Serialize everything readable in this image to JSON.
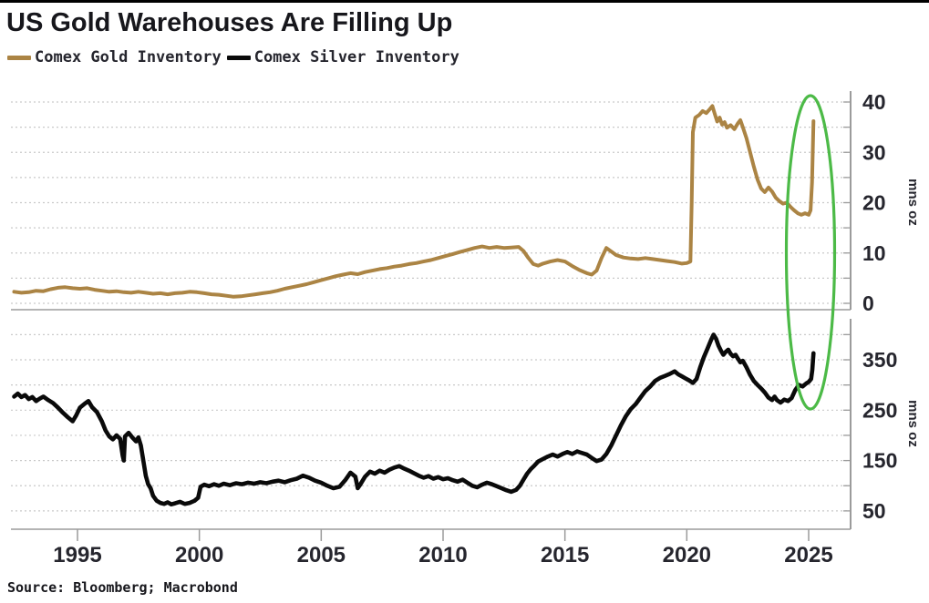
{
  "title": "US Gold Warehouses Are Filling Up",
  "source": "Source: Bloomberg; Macrobond",
  "legend": [
    {
      "label": "Comex Gold Inventory",
      "color": "#ab8444"
    },
    {
      "label": "Comex Silver Inventory",
      "color": "#0a0a0a"
    }
  ],
  "colors": {
    "gold_line": "#ab8444",
    "silver_line": "#0a0a0a",
    "highlight_green": "#4cba47",
    "gridline": "#c9c9c9",
    "axis": "#9b9b9b",
    "tick_label": "#26262e"
  },
  "x_axis": {
    "ticks": [
      1995,
      2000,
      2005,
      2010,
      2015,
      2020,
      2025
    ],
    "range": [
      1992.3,
      2026.7
    ]
  },
  "annotation": {
    "type": "ellipse",
    "color": "#4cba47"
  },
  "chart_data": [
    {
      "type": "line",
      "panel": "top",
      "name": "Comex Gold Inventory",
      "color": "#ab8444",
      "ylabel": "mns oz",
      "yticks_labeled": [
        0,
        10,
        20,
        30,
        40
      ],
      "gridlines": [
        0,
        5,
        10,
        15,
        20,
        25,
        30,
        35,
        40
      ],
      "ylim": [
        0,
        42
      ],
      "grid_on": true,
      "legend_position": "top-left",
      "points": [
        [
          1992.4,
          2.3
        ],
        [
          1992.7,
          2.1
        ],
        [
          1993.0,
          2.2
        ],
        [
          1993.3,
          2.5
        ],
        [
          1993.6,
          2.4
        ],
        [
          1993.9,
          2.8
        ],
        [
          1994.2,
          3.1
        ],
        [
          1994.5,
          3.2
        ],
        [
          1994.8,
          3.0
        ],
        [
          1995.1,
          2.9
        ],
        [
          1995.4,
          3.0
        ],
        [
          1995.7,
          2.7
        ],
        [
          1996.0,
          2.5
        ],
        [
          1996.3,
          2.3
        ],
        [
          1996.6,
          2.4
        ],
        [
          1996.9,
          2.2
        ],
        [
          1997.2,
          2.1
        ],
        [
          1997.5,
          2.3
        ],
        [
          1997.8,
          2.1
        ],
        [
          1998.1,
          1.9
        ],
        [
          1998.4,
          2.0
        ],
        [
          1998.7,
          1.8
        ],
        [
          1999.0,
          2.0
        ],
        [
          1999.3,
          2.1
        ],
        [
          1999.6,
          2.3
        ],
        [
          1999.9,
          2.2
        ],
        [
          2000.2,
          2.0
        ],
        [
          2000.5,
          1.8
        ],
        [
          2000.8,
          1.7
        ],
        [
          2001.1,
          1.5
        ],
        [
          2001.4,
          1.3
        ],
        [
          2001.7,
          1.4
        ],
        [
          2002.0,
          1.6
        ],
        [
          2002.3,
          1.8
        ],
        [
          2002.6,
          2.0
        ],
        [
          2002.9,
          2.2
        ],
        [
          2003.2,
          2.5
        ],
        [
          2003.5,
          2.9
        ],
        [
          2003.8,
          3.2
        ],
        [
          2004.1,
          3.5
        ],
        [
          2004.4,
          3.8
        ],
        [
          2004.7,
          4.2
        ],
        [
          2005.0,
          4.6
        ],
        [
          2005.3,
          5.0
        ],
        [
          2005.6,
          5.4
        ],
        [
          2005.9,
          5.7
        ],
        [
          2006.2,
          6.0
        ],
        [
          2006.5,
          5.8
        ],
        [
          2006.8,
          6.2
        ],
        [
          2007.1,
          6.5
        ],
        [
          2007.4,
          6.8
        ],
        [
          2007.7,
          7.0
        ],
        [
          2008.0,
          7.3
        ],
        [
          2008.3,
          7.5
        ],
        [
          2008.6,
          7.8
        ],
        [
          2008.9,
          8.0
        ],
        [
          2009.2,
          8.3
        ],
        [
          2009.5,
          8.6
        ],
        [
          2009.8,
          9.0
        ],
        [
          2010.1,
          9.4
        ],
        [
          2010.4,
          9.8
        ],
        [
          2010.7,
          10.2
        ],
        [
          2011.0,
          10.6
        ],
        [
          2011.3,
          11.0
        ],
        [
          2011.6,
          11.3
        ],
        [
          2011.9,
          11.0
        ],
        [
          2012.2,
          11.2
        ],
        [
          2012.5,
          11.0
        ],
        [
          2012.8,
          11.1
        ],
        [
          2013.1,
          11.2
        ],
        [
          2013.3,
          10.4
        ],
        [
          2013.5,
          9.0
        ],
        [
          2013.7,
          7.8
        ],
        [
          2013.9,
          7.5
        ],
        [
          2014.1,
          7.9
        ],
        [
          2014.4,
          8.3
        ],
        [
          2014.7,
          8.6
        ],
        [
          2015.0,
          8.3
        ],
        [
          2015.3,
          7.4
        ],
        [
          2015.6,
          6.6
        ],
        [
          2015.9,
          6.0
        ],
        [
          2016.1,
          5.7
        ],
        [
          2016.3,
          6.5
        ],
        [
          2016.5,
          9.0
        ],
        [
          2016.7,
          11.0
        ],
        [
          2016.9,
          10.3
        ],
        [
          2017.1,
          9.6
        ],
        [
          2017.4,
          9.1
        ],
        [
          2017.7,
          8.9
        ],
        [
          2018.0,
          8.8
        ],
        [
          2018.3,
          9.0
        ],
        [
          2018.6,
          8.8
        ],
        [
          2018.9,
          8.6
        ],
        [
          2019.2,
          8.4
        ],
        [
          2019.5,
          8.2
        ],
        [
          2019.8,
          7.9
        ],
        [
          2020.0,
          8.0
        ],
        [
          2020.15,
          8.3
        ],
        [
          2020.2,
          20.0
        ],
        [
          2020.25,
          34.0
        ],
        [
          2020.35,
          36.9
        ],
        [
          2020.5,
          37.4
        ],
        [
          2020.65,
          38.2
        ],
        [
          2020.8,
          37.8
        ],
        [
          2020.95,
          38.6
        ],
        [
          2021.05,
          39.2
        ],
        [
          2021.15,
          37.6
        ],
        [
          2021.25,
          36.1
        ],
        [
          2021.35,
          36.9
        ],
        [
          2021.45,
          35.5
        ],
        [
          2021.55,
          36.0
        ],
        [
          2021.65,
          34.9
        ],
        [
          2021.8,
          35.4
        ],
        [
          2021.95,
          34.6
        ],
        [
          2022.1,
          35.8
        ],
        [
          2022.2,
          36.4
        ],
        [
          2022.3,
          35.0
        ],
        [
          2022.45,
          32.8
        ],
        [
          2022.6,
          30.0
        ],
        [
          2022.75,
          27.2
        ],
        [
          2022.9,
          24.6
        ],
        [
          2023.05,
          22.8
        ],
        [
          2023.2,
          22.1
        ],
        [
          2023.35,
          23.0
        ],
        [
          2023.5,
          22.2
        ],
        [
          2023.65,
          21.0
        ],
        [
          2023.8,
          20.3
        ],
        [
          2023.95,
          19.8
        ],
        [
          2024.1,
          20.0
        ],
        [
          2024.25,
          19.2
        ],
        [
          2024.4,
          18.5
        ],
        [
          2024.55,
          17.9
        ],
        [
          2024.7,
          17.6
        ],
        [
          2024.85,
          17.9
        ],
        [
          2025.0,
          17.6
        ],
        [
          2025.08,
          18.5
        ],
        [
          2025.14,
          24.0
        ],
        [
          2025.2,
          36.2
        ]
      ]
    },
    {
      "type": "line",
      "panel": "bottom",
      "name": "Comex Silver Inventory",
      "color": "#0a0a0a",
      "ylabel": "mns oz",
      "yticks_labeled": [
        50,
        150,
        250,
        350
      ],
      "gridlines": [
        50,
        100,
        150,
        200,
        250,
        300,
        350,
        400
      ],
      "ylim": [
        15,
        430
      ],
      "grid_on": true,
      "points": [
        [
          1992.4,
          277
        ],
        [
          1992.55,
          283
        ],
        [
          1992.7,
          276
        ],
        [
          1992.85,
          280
        ],
        [
          1993.0,
          272
        ],
        [
          1993.15,
          276
        ],
        [
          1993.3,
          268
        ],
        [
          1993.45,
          273
        ],
        [
          1993.6,
          277
        ],
        [
          1993.8,
          270
        ],
        [
          1994.0,
          264
        ],
        [
          1994.2,
          255
        ],
        [
          1994.4,
          245
        ],
        [
          1994.6,
          236
        ],
        [
          1994.8,
          228
        ],
        [
          1994.95,
          240
        ],
        [
          1995.1,
          255
        ],
        [
          1995.3,
          263
        ],
        [
          1995.45,
          268
        ],
        [
          1995.6,
          256
        ],
        [
          1995.8,
          246
        ],
        [
          1996.0,
          228
        ],
        [
          1996.15,
          210
        ],
        [
          1996.3,
          198
        ],
        [
          1996.45,
          192
        ],
        [
          1996.6,
          200
        ],
        [
          1996.75,
          193
        ],
        [
          1996.85,
          160
        ],
        [
          1996.9,
          150
        ],
        [
          1996.95,
          198
        ],
        [
          1997.1,
          205
        ],
        [
          1997.25,
          196
        ],
        [
          1997.4,
          188
        ],
        [
          1997.5,
          196
        ],
        [
          1997.6,
          180
        ],
        [
          1997.7,
          150
        ],
        [
          1997.8,
          120
        ],
        [
          1997.9,
          103
        ],
        [
          1998.0,
          95
        ],
        [
          1998.1,
          80
        ],
        [
          1998.25,
          70
        ],
        [
          1998.4,
          66
        ],
        [
          1998.55,
          64
        ],
        [
          1998.7,
          67
        ],
        [
          1998.85,
          63
        ],
        [
          1999.0,
          65
        ],
        [
          1999.2,
          68
        ],
        [
          1999.4,
          64
        ],
        [
          1999.6,
          66
        ],
        [
          1999.8,
          70
        ],
        [
          1999.95,
          76
        ],
        [
          2000.05,
          98
        ],
        [
          2000.2,
          102
        ],
        [
          2000.4,
          99
        ],
        [
          2000.6,
          103
        ],
        [
          2000.8,
          100
        ],
        [
          2001.0,
          104
        ],
        [
          2001.25,
          101
        ],
        [
          2001.5,
          105
        ],
        [
          2001.75,
          103
        ],
        [
          2002.0,
          106
        ],
        [
          2002.25,
          104
        ],
        [
          2002.5,
          107
        ],
        [
          2002.75,
          105
        ],
        [
          2003.0,
          108
        ],
        [
          2003.25,
          110
        ],
        [
          2003.5,
          107
        ],
        [
          2003.75,
          111
        ],
        [
          2004.0,
          114
        ],
        [
          2004.25,
          120
        ],
        [
          2004.5,
          116
        ],
        [
          2004.75,
          110
        ],
        [
          2005.0,
          106
        ],
        [
          2005.25,
          100
        ],
        [
          2005.5,
          95
        ],
        [
          2005.75,
          98
        ],
        [
          2006.0,
          112
        ],
        [
          2006.2,
          126
        ],
        [
          2006.4,
          118
        ],
        [
          2006.5,
          95
        ],
        [
          2006.6,
          102
        ],
        [
          2006.8,
          118
        ],
        [
          2007.0,
          128
        ],
        [
          2007.2,
          124
        ],
        [
          2007.4,
          130
        ],
        [
          2007.6,
          126
        ],
        [
          2007.8,
          132
        ],
        [
          2008.0,
          136
        ],
        [
          2008.2,
          139
        ],
        [
          2008.4,
          134
        ],
        [
          2008.6,
          130
        ],
        [
          2008.8,
          125
        ],
        [
          2009.0,
          120
        ],
        [
          2009.2,
          116
        ],
        [
          2009.4,
          119
        ],
        [
          2009.6,
          114
        ],
        [
          2009.8,
          117
        ],
        [
          2010.0,
          113
        ],
        [
          2010.2,
          115
        ],
        [
          2010.4,
          111
        ],
        [
          2010.6,
          108
        ],
        [
          2010.8,
          112
        ],
        [
          2011.0,
          106
        ],
        [
          2011.2,
          100
        ],
        [
          2011.4,
          97
        ],
        [
          2011.6,
          102
        ],
        [
          2011.8,
          106
        ],
        [
          2012.0,
          103
        ],
        [
          2012.2,
          99
        ],
        [
          2012.4,
          95
        ],
        [
          2012.6,
          91
        ],
        [
          2012.8,
          88
        ],
        [
          2013.0,
          92
        ],
        [
          2013.15,
          100
        ],
        [
          2013.3,
          112
        ],
        [
          2013.45,
          124
        ],
        [
          2013.6,
          133
        ],
        [
          2013.75,
          140
        ],
        [
          2013.9,
          148
        ],
        [
          2014.1,
          153
        ],
        [
          2014.3,
          158
        ],
        [
          2014.5,
          162
        ],
        [
          2014.7,
          158
        ],
        [
          2014.9,
          163
        ],
        [
          2015.1,
          167
        ],
        [
          2015.3,
          163
        ],
        [
          2015.5,
          168
        ],
        [
          2015.7,
          165
        ],
        [
          2015.9,
          162
        ],
        [
          2016.1,
          155
        ],
        [
          2016.3,
          149
        ],
        [
          2016.5,
          152
        ],
        [
          2016.7,
          163
        ],
        [
          2016.9,
          180
        ],
        [
          2017.1,
          200
        ],
        [
          2017.3,
          220
        ],
        [
          2017.5,
          238
        ],
        [
          2017.7,
          252
        ],
        [
          2017.9,
          262
        ],
        [
          2018.1,
          275
        ],
        [
          2018.3,
          288
        ],
        [
          2018.5,
          297
        ],
        [
          2018.7,
          308
        ],
        [
          2018.9,
          314
        ],
        [
          2019.1,
          318
        ],
        [
          2019.3,
          322
        ],
        [
          2019.5,
          327
        ],
        [
          2019.65,
          321
        ],
        [
          2019.8,
          317
        ],
        [
          2019.95,
          313
        ],
        [
          2020.1,
          309
        ],
        [
          2020.25,
          304
        ],
        [
          2020.4,
          312
        ],
        [
          2020.55,
          335
        ],
        [
          2020.7,
          355
        ],
        [
          2020.85,
          372
        ],
        [
          2021.0,
          390
        ],
        [
          2021.1,
          400
        ],
        [
          2021.2,
          392
        ],
        [
          2021.3,
          378
        ],
        [
          2021.4,
          368
        ],
        [
          2021.5,
          360
        ],
        [
          2021.6,
          366
        ],
        [
          2021.7,
          370
        ],
        [
          2021.8,
          362
        ],
        [
          2021.9,
          357
        ],
        [
          2022.0,
          360
        ],
        [
          2022.1,
          352
        ],
        [
          2022.2,
          345
        ],
        [
          2022.3,
          348
        ],
        [
          2022.45,
          335
        ],
        [
          2022.6,
          320
        ],
        [
          2022.75,
          308
        ],
        [
          2022.9,
          300
        ],
        [
          2023.05,
          293
        ],
        [
          2023.2,
          285
        ],
        [
          2023.35,
          275
        ],
        [
          2023.5,
          270
        ],
        [
          2023.6,
          277
        ],
        [
          2023.7,
          270
        ],
        [
          2023.85,
          265
        ],
        [
          2024.0,
          271
        ],
        [
          2024.15,
          268
        ],
        [
          2024.3,
          274
        ],
        [
          2024.45,
          290
        ],
        [
          2024.6,
          300
        ],
        [
          2024.75,
          297
        ],
        [
          2024.9,
          303
        ],
        [
          2025.0,
          306
        ],
        [
          2025.1,
          312
        ],
        [
          2025.15,
          330
        ],
        [
          2025.2,
          363
        ]
      ]
    }
  ]
}
